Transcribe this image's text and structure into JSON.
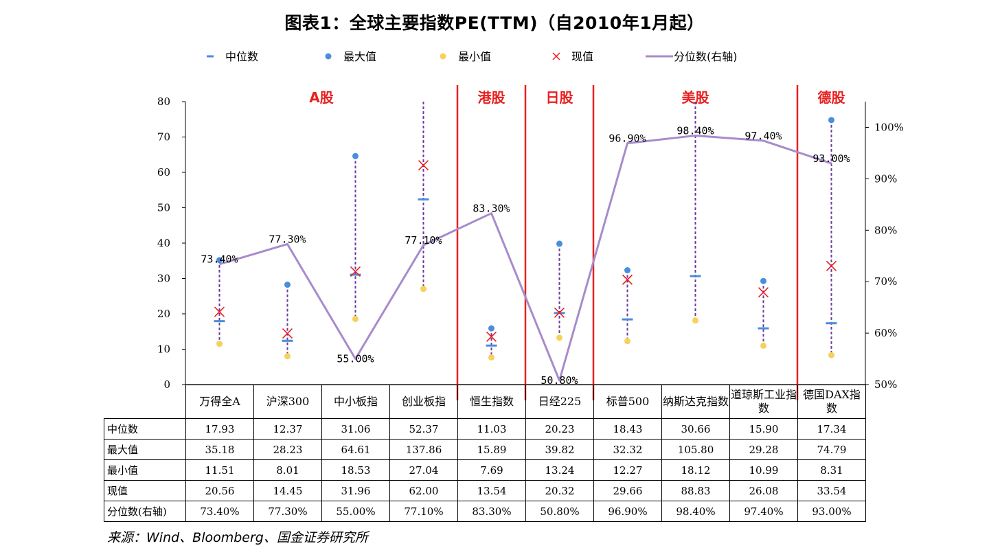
{
  "title": "图表1：全球主要指数PE(TTM)（自2010年1月起）",
  "source": "来源：Wind、Bloomberg、国金证券研究所",
  "legend": [
    {
      "key": "median",
      "label": "中位数",
      "color": "#4a8ddc",
      "marker": "dash"
    },
    {
      "key": "max",
      "label": "最大值",
      "color": "#4a8ddc",
      "marker": "dot"
    },
    {
      "key": "min",
      "label": "最小值",
      "color": "#f7d15c",
      "marker": "dot"
    },
    {
      "key": "current",
      "label": "现值",
      "color": "#e8201f",
      "marker": "x"
    },
    {
      "key": "percentile",
      "label": "分位数(右轴)",
      "color": "#a78bcb",
      "marker": "line"
    }
  ],
  "regions": [
    {
      "label": "A股",
      "start": 0,
      "end": 4
    },
    {
      "label": "港股",
      "start": 4,
      "end": 5
    },
    {
      "label": "日股",
      "start": 5,
      "end": 6
    },
    {
      "label": "美股",
      "start": 6,
      "end": 9
    },
    {
      "label": "德股",
      "start": 9,
      "end": 10
    }
  ],
  "chart_data": {
    "type": "line",
    "title": "图表1：全球主要指数PE(TTM)（自2010年1月起）",
    "categories": [
      "万得全A",
      "沪深300",
      "中小板指",
      "创业板指",
      "恒生指数",
      "日经225",
      "标普500",
      "纳斯达克指数",
      "道琼斯工业指数",
      "德国DAX指数"
    ],
    "y_left": {
      "min": 0,
      "max": 80,
      "ticks": [
        "0",
        "10",
        "20",
        "30",
        "40",
        "50",
        "60",
        "70",
        "80"
      ]
    },
    "y_right": {
      "min": 50,
      "max": 105,
      "ticks": [
        "50%",
        "60%",
        "70%",
        "80%",
        "90%",
        "100%"
      ]
    },
    "series": [
      {
        "name": "中位数",
        "axis": "left",
        "values": [
          17.93,
          12.37,
          31.06,
          52.37,
          11.03,
          20.23,
          18.43,
          30.66,
          15.9,
          17.34
        ]
      },
      {
        "name": "最大值",
        "axis": "left",
        "values": [
          35.18,
          28.23,
          64.61,
          137.86,
          15.89,
          39.82,
          32.32,
          105.8,
          29.28,
          74.79
        ]
      },
      {
        "name": "最小值",
        "axis": "left",
        "values": [
          11.51,
          8.01,
          18.53,
          27.04,
          7.69,
          13.24,
          12.27,
          18.12,
          10.99,
          8.31
        ]
      },
      {
        "name": "现值",
        "axis": "left",
        "values": [
          20.56,
          14.45,
          31.96,
          62.0,
          13.54,
          20.32,
          29.66,
          88.83,
          26.08,
          33.54
        ]
      },
      {
        "name": "分位数(右轴)",
        "axis": "right",
        "values": [
          73.4,
          77.3,
          55.0,
          77.1,
          83.3,
          50.8,
          96.9,
          98.4,
          97.4,
          93.0
        ]
      }
    ],
    "percentile_labels": [
      "73.40%",
      "77.30%",
      "55.00%",
      "77.10%",
      "83.30%",
      "50.80%",
      "96.90%",
      "98.40%",
      "97.40%",
      "93.00%"
    ]
  },
  "table": {
    "headers": [
      "万得全A",
      "沪深300",
      "中小板指",
      "创业板指",
      "恒生指数",
      "日经225",
      "标普500",
      "纳斯达克指数",
      "道琼斯工业指数",
      "德国DAX指数"
    ],
    "rows": [
      {
        "label": "中位数",
        "cells": [
          "17.93",
          "12.37",
          "31.06",
          "52.37",
          "11.03",
          "20.23",
          "18.43",
          "30.66",
          "15.90",
          "17.34"
        ]
      },
      {
        "label": "最大值",
        "cells": [
          "35.18",
          "28.23",
          "64.61",
          "137.86",
          "15.89",
          "39.82",
          "32.32",
          "105.80",
          "29.28",
          "74.79"
        ]
      },
      {
        "label": "最小值",
        "cells": [
          "11.51",
          "8.01",
          "18.53",
          "27.04",
          "7.69",
          "13.24",
          "12.27",
          "18.12",
          "10.99",
          "8.31"
        ]
      },
      {
        "label": "现值",
        "cells": [
          "20.56",
          "14.45",
          "31.96",
          "62.00",
          "13.54",
          "20.32",
          "29.66",
          "88.83",
          "26.08",
          "33.54"
        ]
      },
      {
        "label": "分位数(右轴)",
        "cells": [
          "73.40%",
          "77.30%",
          "55.00%",
          "77.10%",
          "83.30%",
          "50.80%",
          "96.90%",
          "98.40%",
          "97.40%",
          "93.00%"
        ]
      }
    ]
  }
}
